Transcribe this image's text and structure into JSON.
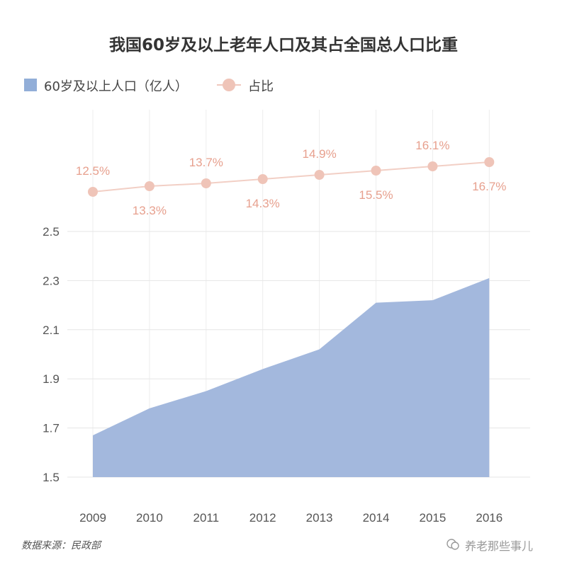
{
  "chart_data": {
    "type": "area",
    "title": "我国60岁及以上老年人口及其占全国总人口比重",
    "categories": [
      "2009",
      "2010",
      "2011",
      "2012",
      "2013",
      "2014",
      "2015",
      "2016"
    ],
    "series": [
      {
        "name": "60岁及以上人口（亿人）",
        "type": "area",
        "color": "#a3b8dd",
        "values": [
          1.67,
          1.78,
          1.85,
          1.94,
          2.02,
          2.21,
          2.22,
          2.31
        ]
      },
      {
        "name": "占比",
        "type": "line",
        "color": "#efc4b8",
        "values": [
          12.5,
          13.3,
          13.7,
          14.3,
          14.9,
          15.5,
          16.1,
          16.7
        ],
        "labels": [
          "12.5%",
          "13.3%",
          "13.7%",
          "14.3%",
          "14.9%",
          "15.5%",
          "16.1%",
          "16.7%"
        ]
      }
    ],
    "ylim": [
      1.5,
      2.5
    ],
    "yticks": [
      "1.5",
      "1.7",
      "1.9",
      "2.1",
      "2.3",
      "2.5"
    ],
    "grid": true,
    "legend": "top-left"
  },
  "source": "数据来源：民政部",
  "watermark": "养老那些事儿"
}
